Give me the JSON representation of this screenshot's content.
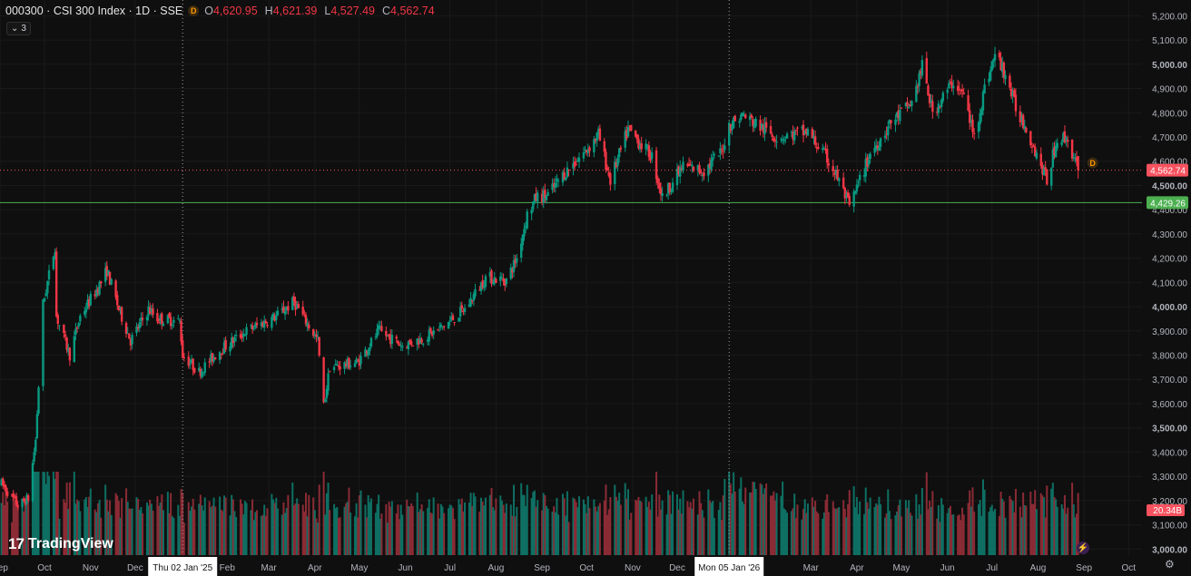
{
  "header": {
    "symbol_title": "000300 · CSI 300 Index · 1D · SSE",
    "badge": "D",
    "ohlc": [
      {
        "key": "O",
        "value": "4,620.95"
      },
      {
        "key": "H",
        "value": "4,621.39"
      },
      {
        "key": "L",
        "value": "4,527.49"
      },
      {
        "key": "C",
        "value": "4,562.74"
      }
    ]
  },
  "indicators_toggle": {
    "icon": "chevron-down-icon",
    "count": "3"
  },
  "logo_text": "TradingView",
  "colors": {
    "background": "#0f0f0f",
    "grid": "#1a1a1a",
    "up": "#089981",
    "down": "#f23645",
    "up_vol": "#0e6f63",
    "down_vol": "#8a2b35",
    "axis_text": "#b2b5be",
    "last_price_bg": "#f7525f",
    "horizontal_line": "#4caf50",
    "crosshair": "#9aa0a6"
  },
  "chart_data": {
    "type": "candlestick",
    "title": "000300 · CSI 300 Index · 1D · SSE",
    "y_ticks": [
      "3,000.00",
      "3,100.00",
      "3,200.00",
      "3,300.00",
      "3,400.00",
      "3,500.00",
      "3,600.00",
      "3,700.00",
      "3,800.00",
      "3,900.00",
      "4,000.00",
      "4,100.00",
      "4,200.00",
      "4,300.00",
      "4,400.00",
      "4,500.00",
      "4,600.00",
      "4,700.00",
      "4,800.00",
      "4,900.00",
      "5,000.00",
      "5,100.00",
      "5,200.00"
    ],
    "y_tick_values": [
      3000,
      3100,
      3200,
      3300,
      3400,
      3500,
      3600,
      3700,
      3800,
      3900,
      4000,
      4100,
      4200,
      4300,
      4400,
      4500,
      4600,
      4700,
      4800,
      4900,
      5000,
      5100,
      5200
    ],
    "ylim": [
      2975,
      5265
    ],
    "x_range": [
      "2024-09-01",
      "2026-10-10"
    ],
    "x_ticks": [
      {
        "label": "Sep",
        "date": "2024-09-01"
      },
      {
        "label": "Oct",
        "date": "2024-10-01"
      },
      {
        "label": "Nov",
        "date": "2024-11-01"
      },
      {
        "label": "Dec",
        "date": "2024-12-01"
      },
      {
        "label": "Feb",
        "date": "2025-02-01"
      },
      {
        "label": "Mar",
        "date": "2025-03-01"
      },
      {
        "label": "Apr",
        "date": "2025-04-01"
      },
      {
        "label": "May",
        "date": "2025-05-01"
      },
      {
        "label": "Jun",
        "date": "2025-06-01"
      },
      {
        "label": "Jul",
        "date": "2025-07-01"
      },
      {
        "label": "Aug",
        "date": "2025-08-01"
      },
      {
        "label": "Sep",
        "date": "2025-09-01"
      },
      {
        "label": "Oct",
        "date": "2025-10-01"
      },
      {
        "label": "Nov",
        "date": "2025-11-01"
      },
      {
        "label": "Dec",
        "date": "2025-12-01"
      },
      {
        "label": "Mar",
        "date": "2026-03-01"
      },
      {
        "label": "Apr",
        "date": "2026-04-01"
      },
      {
        "label": "May",
        "date": "2026-05-01"
      },
      {
        "label": "Jun",
        "date": "2026-06-01"
      },
      {
        "label": "Jul",
        "date": "2026-07-01"
      },
      {
        "label": "Aug",
        "date": "2026-08-01"
      },
      {
        "label": "Sep",
        "date": "2026-09-01"
      },
      {
        "label": "Oct",
        "date": "2026-10-01"
      }
    ],
    "crosshair_dates": [
      {
        "label": "Thu 02 Jan '25",
        "date": "2025-01-02"
      },
      {
        "label": "Mon 05 Jan '26",
        "date": "2026-01-05"
      }
    ],
    "price_path": [
      {
        "date": "2024-09-02",
        "close": 3270
      },
      {
        "date": "2024-09-13",
        "close": 3180
      },
      {
        "date": "2024-09-20",
        "close": 3210
      },
      {
        "date": "2024-09-25",
        "close": 3450
      },
      {
        "date": "2024-09-30",
        "close": 4010
      },
      {
        "date": "2024-10-08",
        "close": 4250
      },
      {
        "date": "2024-10-09",
        "close": 3960
      },
      {
        "date": "2024-10-18",
        "close": 3800
      },
      {
        "date": "2024-10-25",
        "close": 3960
      },
      {
        "date": "2024-11-08",
        "close": 4100
      },
      {
        "date": "2024-11-12",
        "close": 4150
      },
      {
        "date": "2024-11-20",
        "close": 3990
      },
      {
        "date": "2024-11-28",
        "close": 3860
      },
      {
        "date": "2024-12-10",
        "close": 3990
      },
      {
        "date": "2024-12-16",
        "close": 3950
      },
      {
        "date": "2024-12-31",
        "close": 3940
      },
      {
        "date": "2025-01-02",
        "close": 3800
      },
      {
        "date": "2025-01-13",
        "close": 3730
      },
      {
        "date": "2025-01-27",
        "close": 3820
      },
      {
        "date": "2025-02-14",
        "close": 3900
      },
      {
        "date": "2025-03-06",
        "close": 3960
      },
      {
        "date": "2025-03-18",
        "close": 4020
      },
      {
        "date": "2025-03-31",
        "close": 3890
      },
      {
        "date": "2025-04-03",
        "close": 3860
      },
      {
        "date": "2025-04-07",
        "close": 3590
      },
      {
        "date": "2025-04-11",
        "close": 3750
      },
      {
        "date": "2025-04-30",
        "close": 3770
      },
      {
        "date": "2025-05-14",
        "close": 3900
      },
      {
        "date": "2025-05-30",
        "close": 3840
      },
      {
        "date": "2025-06-13",
        "close": 3870
      },
      {
        "date": "2025-06-27",
        "close": 3920
      },
      {
        "date": "2025-07-11",
        "close": 3990
      },
      {
        "date": "2025-07-25",
        "close": 4120
      },
      {
        "date": "2025-08-08",
        "close": 4110
      },
      {
        "date": "2025-08-15",
        "close": 4200
      },
      {
        "date": "2025-08-22",
        "close": 4380
      },
      {
        "date": "2025-08-28",
        "close": 4450
      },
      {
        "date": "2025-09-05",
        "close": 4460
      },
      {
        "date": "2025-09-16",
        "close": 4550
      },
      {
        "date": "2025-09-30",
        "close": 4640
      },
      {
        "date": "2025-10-09",
        "close": 4710
      },
      {
        "date": "2025-10-17",
        "close": 4520
      },
      {
        "date": "2025-10-29",
        "close": 4730
      },
      {
        "date": "2025-11-14",
        "close": 4620
      },
      {
        "date": "2025-11-21",
        "close": 4450
      },
      {
        "date": "2025-12-05",
        "close": 4580
      },
      {
        "date": "2025-12-19",
        "close": 4560
      },
      {
        "date": "2025-12-31",
        "close": 4640
      },
      {
        "date": "2026-01-05",
        "close": 4750
      },
      {
        "date": "2026-01-14",
        "close": 4790
      },
      {
        "date": "2026-02-06",
        "close": 4700
      },
      {
        "date": "2026-02-27",
        "close": 4720
      },
      {
        "date": "2026-03-13",
        "close": 4600
      },
      {
        "date": "2026-03-20",
        "close": 4520
      },
      {
        "date": "2026-03-27",
        "close": 4410
      },
      {
        "date": "2026-04-10",
        "close": 4630
      },
      {
        "date": "2026-04-24",
        "close": 4760
      },
      {
        "date": "2026-05-08",
        "close": 4840
      },
      {
        "date": "2026-05-15",
        "close": 4990
      },
      {
        "date": "2026-05-22",
        "close": 4800
      },
      {
        "date": "2026-06-05",
        "close": 4930
      },
      {
        "date": "2026-06-12",
        "close": 4870
      },
      {
        "date": "2026-06-19",
        "close": 4700
      },
      {
        "date": "2026-06-26",
        "close": 4900
      },
      {
        "date": "2026-07-03",
        "close": 5040
      },
      {
        "date": "2026-07-10",
        "close": 4960
      },
      {
        "date": "2026-07-17",
        "close": 4820
      },
      {
        "date": "2026-07-24",
        "close": 4740
      },
      {
        "date": "2026-08-07",
        "close": 4520
      },
      {
        "date": "2026-08-14",
        "close": 4700
      },
      {
        "date": "2026-08-21",
        "close": 4690
      },
      {
        "date": "2026-08-28",
        "close": 4560
      }
    ],
    "last_price": {
      "value": 4562.74,
      "label": "4,562.74",
      "badge": "D"
    },
    "horizontal_level": {
      "value": 4429.26,
      "label": "4,429.26"
    },
    "volume": {
      "last_label": "20.34B"
    }
  }
}
